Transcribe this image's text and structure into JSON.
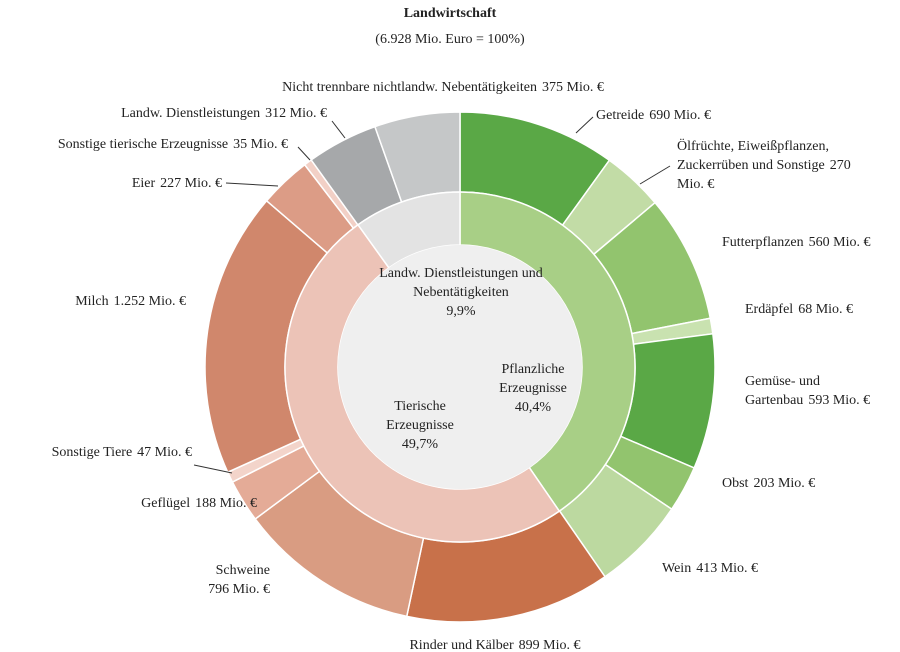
{
  "chart_data": {
    "type": "sunburst",
    "title": "Landwirtschaft",
    "subtitle": "(6.928 Mio. Euro = 100%)",
    "categories": [
      "Getreide",
      "Ölfrüchte, Eiweißpflanzen, Zuckerrüben und Sonstige",
      "Futterpflanzen",
      "Erdäpfel",
      "Gemüse- und Gartenbau",
      "Obst",
      "Wein",
      "Rinder und Kälber",
      "Schweine",
      "Geflügel",
      "Sonstige Tiere",
      "Milch",
      "Eier",
      "Sonstige tierische Erzeugnisse",
      "Landw. Dienstleistungen",
      "Nicht trennbare nichtlandw. Nebentätigkeiten"
    ],
    "values": [
      690,
      270,
      560,
      68,
      593,
      203,
      413,
      899,
      796,
      188,
      47,
      1252,
      227,
      35,
      312,
      375
    ],
    "value_labels": [
      "690 Mio. €",
      "270 Mio. €",
      "560 Mio. €",
      "68 Mio. €",
      "593 Mio. €",
      "203 Mio. €",
      "413 Mio. €",
      "899 Mio. €",
      "796 Mio. €",
      "188 Mio. €",
      "47 Mio. €",
      "1.252 Mio. €",
      "227 Mio. €",
      "35 Mio. €",
      "312 Mio. €",
      "375 Mio. €"
    ],
    "colors": [
      "#5aa846",
      "#c2dca6",
      "#92c46e",
      "#c9e2b0",
      "#5aa846",
      "#92c46e",
      "#bcd9a0",
      "#c8714a",
      "#d99c82",
      "#e4ab97",
      "#f3d4ca",
      "#d0876c",
      "#dc9c86",
      "#f2d0c6",
      "#a6a8aa",
      "#c5c7c8"
    ],
    "inner": {
      "categories": [
        "Pflanzliche Erzeugnisse",
        "Tierische Erzeugnisse",
        "Landw. Dienstleistungen und Nebentätigkeiten"
      ],
      "values": [
        40.4,
        49.7,
        9.9
      ],
      "value_labels": [
        "40,4%",
        "49,7%",
        "9,9%"
      ],
      "colors": [
        "#a8cf86",
        "#ecc3b7",
        "#e3e3e3"
      ]
    }
  }
}
